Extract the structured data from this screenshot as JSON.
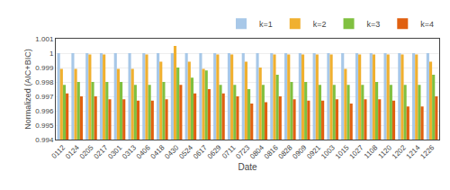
{
  "chart_data": {
    "type": "bar",
    "xlabel": "Date",
    "ylabel": "Normalized (AIC+BIC)",
    "categories": [
      "0112",
      "0124",
      "0205",
      "0217",
      "0301",
      "0313",
      "0406",
      "0418",
      "0430",
      "0524",
      "0617",
      "0629",
      "0711",
      "0723",
      "0804",
      "0816",
      "0828",
      "0909",
      "0921",
      "1003",
      "1015",
      "1027",
      "1108",
      "1120",
      "1202",
      "1214",
      "1226"
    ],
    "series": [
      {
        "name": "k=1",
        "color": "#a8c8e8",
        "values": [
          1.0,
          1.0,
          1.0,
          1.0,
          1.0,
          1.0,
          1.0,
          1.0,
          1.0,
          1.0,
          1.0,
          1.0,
          1.0,
          1.0,
          1.0,
          1.0,
          1.0,
          1.0,
          1.0,
          1.0,
          1.0,
          1.0,
          1.0,
          1.0,
          1.0,
          1.0,
          1.0
        ]
      },
      {
        "name": "k=2",
        "color": "#f0b030",
        "values": [
          0.9989,
          0.9989,
          0.9999,
          0.9999,
          0.9989,
          0.9989,
          0.9999,
          0.9994,
          1.0005,
          0.9994,
          0.9989,
          0.9999,
          0.9999,
          0.9994,
          0.999,
          0.9999,
          0.9999,
          0.9999,
          0.9999,
          0.9999,
          0.9989,
          0.9999,
          0.9999,
          0.9999,
          0.9999,
          0.9999,
          0.9994
        ]
      },
      {
        "name": "k=3",
        "color": "#80c040",
        "values": [
          0.9978,
          0.998,
          0.998,
          0.998,
          0.998,
          0.9978,
          0.9978,
          0.998,
          0.999,
          0.9983,
          0.9988,
          0.9978,
          0.9978,
          0.9975,
          0.9978,
          0.9985,
          0.998,
          0.998,
          0.9978,
          0.9978,
          0.9978,
          0.9978,
          0.998,
          0.9978,
          0.9978,
          0.9978,
          0.9985
        ]
      },
      {
        "name": "k=4",
        "color": "#e06010",
        "values": [
          0.9972,
          0.997,
          0.997,
          0.9968,
          0.9968,
          0.9967,
          0.9967,
          0.9968,
          0.9978,
          0.9972,
          0.9975,
          0.9972,
          0.997,
          0.9965,
          0.9966,
          0.997,
          0.9968,
          0.9967,
          0.9967,
          0.9968,
          0.9965,
          0.9968,
          0.9968,
          0.9967,
          0.9963,
          0.9963,
          0.997
        ]
      }
    ],
    "ylim": [
      0.994,
      1.001
    ],
    "yticks": [
      0.994,
      0.995,
      0.996,
      0.997,
      0.998,
      0.999,
      1.0,
      1.001
    ],
    "grid": true,
    "legend": "upper right"
  }
}
